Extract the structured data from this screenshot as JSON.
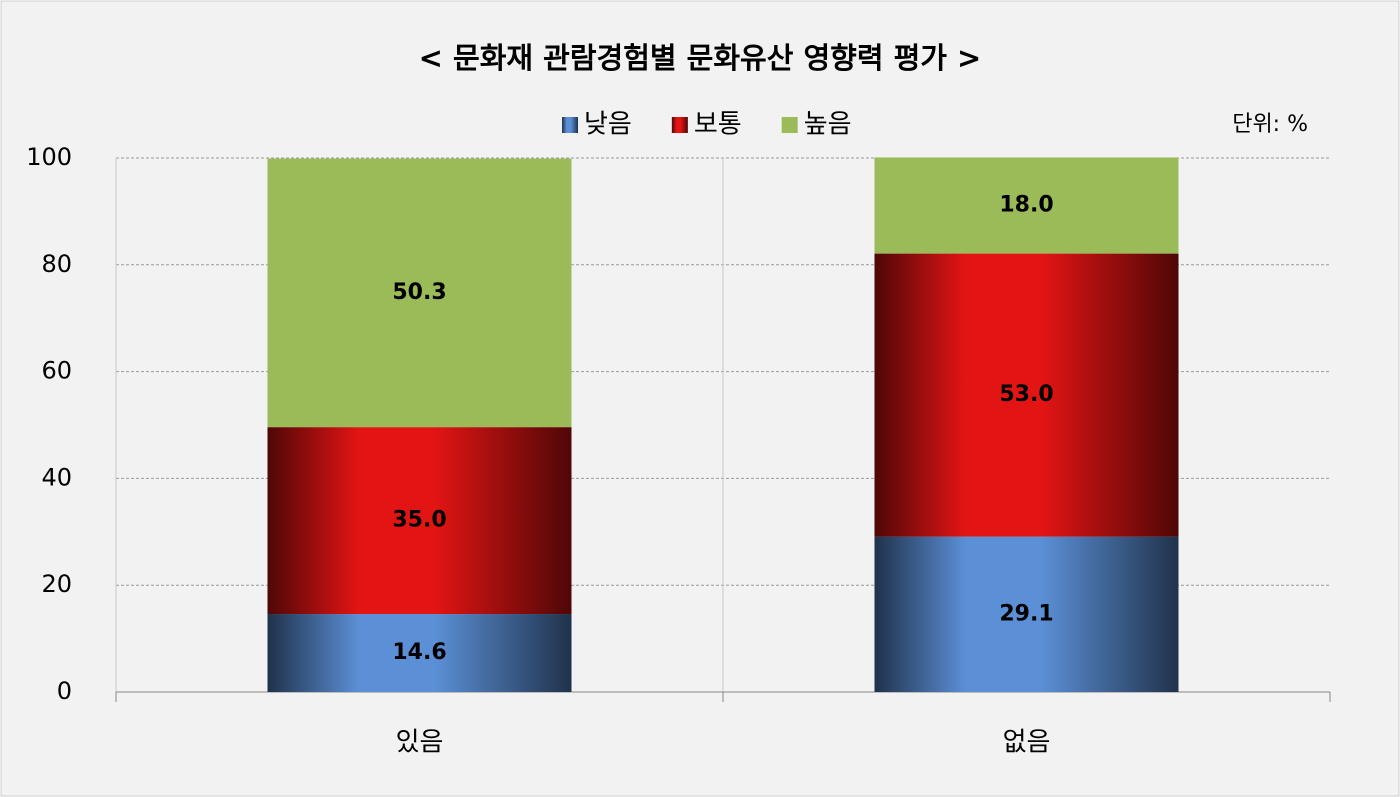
{
  "chart_data": {
    "type": "stacked_bar",
    "title": "< 문화재 관람경험별 문화유산 영향력 평가 >",
    "unit_note": "단위: %",
    "categories": [
      "있음",
      "없음"
    ],
    "series": [
      {
        "name": "낮음",
        "color": "#5b8fd6",
        "gradient": true,
        "values": [
          14.6,
          29.1
        ],
        "value_labels": [
          "14.6",
          "29.1"
        ]
      },
      {
        "name": "보통",
        "color": "#e31414",
        "gradient": true,
        "values": [
          35.0,
          53.0
        ],
        "value_labels": [
          "35.0",
          "53.0"
        ]
      },
      {
        "name": "높음",
        "color": "#9bbb59",
        "gradient": false,
        "values": [
          50.3,
          18.0
        ],
        "value_labels": [
          "50.3",
          "18.0"
        ]
      }
    ],
    "ylim": [
      0,
      100
    ],
    "yticks": [
      0,
      20,
      40,
      60,
      80,
      100
    ],
    "grid": true,
    "legend": "top"
  }
}
